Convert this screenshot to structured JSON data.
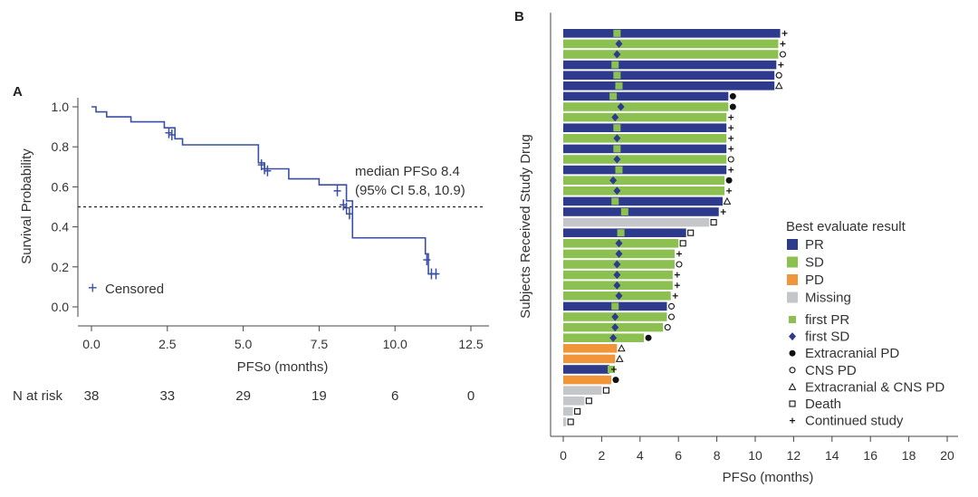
{
  "chart_data": [
    {
      "type": "line",
      "panel_label": "A",
      "xlabel": "PFSo (months)",
      "ylabel": "Survival Probability",
      "xlim": [
        0,
        12.5
      ],
      "ylim": [
        0,
        1.0
      ],
      "xticks": [
        "0.0",
        "2.5",
        "5.0",
        "7.5",
        "10.0",
        "12.5"
      ],
      "yticks": [
        "0.0",
        "0.2",
        "0.4",
        "0.6",
        "0.8",
        "1.0"
      ],
      "color": "#3a4fa3",
      "km_steps": [
        {
          "x": 0.0,
          "y": 1.0
        },
        {
          "x": 0.15,
          "y": 0.975
        },
        {
          "x": 0.5,
          "y": 0.95
        },
        {
          "x": 1.3,
          "y": 0.925
        },
        {
          "x": 2.4,
          "y": 0.895
        },
        {
          "x": 2.75,
          "y": 0.84
        },
        {
          "x": 3.0,
          "y": 0.81
        },
        {
          "x": 5.5,
          "y": 0.72
        },
        {
          "x": 5.7,
          "y": 0.69
        },
        {
          "x": 6.5,
          "y": 0.64
        },
        {
          "x": 7.5,
          "y": 0.61
        },
        {
          "x": 8.4,
          "y": 0.53
        },
        {
          "x": 8.6,
          "y": 0.345
        },
        {
          "x": 11.0,
          "y": 0.265
        },
        {
          "x": 11.1,
          "y": 0.165
        },
        {
          "x": 11.4,
          "y": 0.165
        }
      ],
      "censored": [
        {
          "x": 2.55,
          "y": 0.87
        },
        {
          "x": 2.65,
          "y": 0.86
        },
        {
          "x": 5.6,
          "y": 0.71
        },
        {
          "x": 5.7,
          "y": 0.69
        },
        {
          "x": 5.8,
          "y": 0.68
        },
        {
          "x": 8.1,
          "y": 0.58
        },
        {
          "x": 8.3,
          "y": 0.51
        },
        {
          "x": 8.4,
          "y": 0.495
        },
        {
          "x": 8.5,
          "y": 0.465
        },
        {
          "x": 11.05,
          "y": 0.235
        },
        {
          "x": 11.2,
          "y": 0.165
        },
        {
          "x": 11.35,
          "y": 0.165
        }
      ],
      "median_line_y": 0.5,
      "annotation": [
        "median PFSo 8.4",
        "(95% CI 5.8, 10.9)"
      ],
      "legend": {
        "symbol": "+",
        "label": "Censored"
      },
      "risk_table": {
        "label": "N at risk",
        "values": [
          "38",
          "33",
          "29",
          "19",
          "6",
          "0"
        ]
      }
    },
    {
      "type": "bar",
      "orientation": "horizontal",
      "panel_label": "B",
      "xlabel": "PFSo  (months)",
      "ylabel": "Subjects Received Study Drug",
      "xlim": [
        0,
        20
      ],
      "xticks": [
        "0",
        "2",
        "4",
        "6",
        "8",
        "10",
        "12",
        "14",
        "16",
        "18",
        "20"
      ],
      "colors": {
        "PR": "#2e3a8c",
        "SD": "#8cc152",
        "PD": "#f0953a",
        "Missing": "#c4c6c9",
        "first_marker_PR": "#8cc152",
        "first_marker_SD": "#2e3a8c"
      },
      "bars": [
        {
          "v": 11.3,
          "c": "PR",
          "f": "PR",
          "fx": 2.8,
          "e": "+"
        },
        {
          "v": 11.2,
          "c": "SD",
          "f": "SD",
          "fx": 2.9,
          "e": "+"
        },
        {
          "v": 11.2,
          "c": "SD",
          "f": "SD",
          "fx": 2.8,
          "e": "o"
        },
        {
          "v": 11.1,
          "c": "PR",
          "f": "PR",
          "fx": 2.7,
          "e": "+"
        },
        {
          "v": 11.0,
          "c": "PR",
          "f": "PR",
          "fx": 2.8,
          "e": "o"
        },
        {
          "v": 11.0,
          "c": "PR",
          "f": "PR",
          "fx": 2.9,
          "e": "tri"
        },
        {
          "v": 8.6,
          "c": "PR",
          "f": "PR",
          "fx": 2.6,
          "e": "dot"
        },
        {
          "v": 8.6,
          "c": "SD",
          "f": "SD",
          "fx": 3.0,
          "e": "dot"
        },
        {
          "v": 8.5,
          "c": "SD",
          "f": "SD",
          "fx": 2.7,
          "e": "+"
        },
        {
          "v": 8.5,
          "c": "PR",
          "f": "PR",
          "fx": 2.8,
          "e": "+"
        },
        {
          "v": 8.5,
          "c": "SD",
          "f": "SD",
          "fx": 2.8,
          "e": "+"
        },
        {
          "v": 8.5,
          "c": "PR",
          "f": "PR",
          "fx": 2.8,
          "e": "+"
        },
        {
          "v": 8.5,
          "c": "SD",
          "f": "SD",
          "fx": 2.8,
          "e": "o"
        },
        {
          "v": 8.5,
          "c": "PR",
          "f": "PR",
          "fx": 2.9,
          "e": "+"
        },
        {
          "v": 8.4,
          "c": "SD",
          "f": "SD",
          "fx": 2.6,
          "e": "dot"
        },
        {
          "v": 8.4,
          "c": "SD",
          "f": "SD",
          "fx": 2.8,
          "e": "+"
        },
        {
          "v": 8.3,
          "c": "PR",
          "f": "PR",
          "fx": 2.7,
          "e": "tri"
        },
        {
          "v": 8.1,
          "c": "PR",
          "f": "PR",
          "fx": 3.2,
          "e": "+"
        },
        {
          "v": 7.6,
          "c": "Missing",
          "f": "",
          "fx": 0,
          "e": "sq"
        },
        {
          "v": 6.4,
          "c": "PR",
          "f": "PR",
          "fx": 3.0,
          "e": "sq"
        },
        {
          "v": 6.0,
          "c": "SD",
          "f": "SD",
          "fx": 2.9,
          "e": "sq"
        },
        {
          "v": 5.8,
          "c": "SD",
          "f": "SD",
          "fx": 2.9,
          "e": "+"
        },
        {
          "v": 5.8,
          "c": "SD",
          "f": "SD",
          "fx": 2.8,
          "e": "o"
        },
        {
          "v": 5.7,
          "c": "SD",
          "f": "SD",
          "fx": 2.8,
          "e": "+"
        },
        {
          "v": 5.7,
          "c": "SD",
          "f": "SD",
          "fx": 2.8,
          "e": "+"
        },
        {
          "v": 5.6,
          "c": "SD",
          "f": "SD",
          "fx": 2.9,
          "e": "+"
        },
        {
          "v": 5.4,
          "c": "PR",
          "f": "PR",
          "fx": 2.7,
          "e": "o"
        },
        {
          "v": 5.4,
          "c": "SD",
          "f": "SD",
          "fx": 2.7,
          "e": "o"
        },
        {
          "v": 5.2,
          "c": "SD",
          "f": "SD",
          "fx": 2.7,
          "e": "o"
        },
        {
          "v": 4.2,
          "c": "SD",
          "f": "SD",
          "fx": 2.6,
          "e": "dot"
        },
        {
          "v": 2.8,
          "c": "PD",
          "f": "",
          "fx": 0,
          "e": "tri"
        },
        {
          "v": 2.7,
          "c": "PD",
          "f": "",
          "fx": 0,
          "e": "tri"
        },
        {
          "v": 2.4,
          "c": "PR",
          "f": "PR",
          "fx": 2.5,
          "e": "+"
        },
        {
          "v": 2.5,
          "c": "PD",
          "f": "",
          "fx": 0,
          "e": "dot"
        },
        {
          "v": 2.0,
          "c": "Missing",
          "f": "",
          "fx": 0,
          "e": "sq"
        },
        {
          "v": 1.1,
          "c": "Missing",
          "f": "",
          "fx": 0,
          "e": "sq"
        },
        {
          "v": 0.5,
          "c": "Missing",
          "f": "",
          "fx": 0,
          "e": "sq"
        },
        {
          "v": 0.15,
          "c": "Missing",
          "f": "",
          "fx": 0,
          "e": "sq"
        }
      ],
      "legend_title": "Best evaluate result",
      "legend_colors": [
        {
          "key": "PR",
          "label": "PR"
        },
        {
          "key": "SD",
          "label": "SD"
        },
        {
          "key": "PD",
          "label": "PD"
        },
        {
          "key": "Missing",
          "label": "Missing"
        }
      ],
      "legend_markers": [
        {
          "m": "green-square",
          "label": "first PR"
        },
        {
          "m": "blue-diamond",
          "label": "first SD"
        },
        {
          "m": "filled-circle",
          "label": "Extracranial PD"
        },
        {
          "m": "open-circle",
          "label": "CNS PD"
        },
        {
          "m": "open-triangle",
          "label": "Extracranial & CNS PD"
        },
        {
          "m": "open-square",
          "label": "Death"
        },
        {
          "m": "plus",
          "label": "Continued study"
        }
      ]
    }
  ]
}
